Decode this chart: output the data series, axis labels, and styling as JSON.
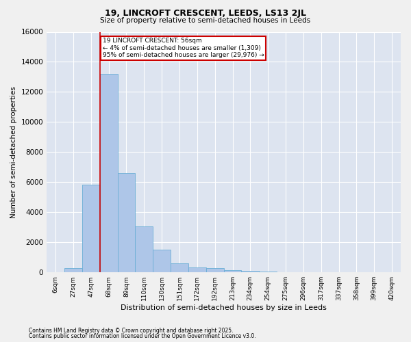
{
  "title1": "19, LINCROFT CRESCENT, LEEDS, LS13 2JL",
  "title2": "Size of property relative to semi-detached houses in Leeds",
  "xlabel": "Distribution of semi-detached houses by size in Leeds",
  "ylabel": "Number of semi-detached properties",
  "categories": [
    "6sqm",
    "27sqm",
    "47sqm",
    "68sqm",
    "89sqm",
    "110sqm",
    "130sqm",
    "151sqm",
    "172sqm",
    "192sqm",
    "213sqm",
    "234sqm",
    "254sqm",
    "275sqm",
    "296sqm",
    "317sqm",
    "337sqm",
    "358sqm",
    "399sqm",
    "420sqm"
  ],
  "values": [
    0,
    300,
    5850,
    13200,
    6600,
    3050,
    1500,
    600,
    350,
    270,
    150,
    80,
    60,
    0,
    0,
    0,
    0,
    0,
    0,
    0
  ],
  "bar_color": "#aec6e8",
  "bar_edge_color": "#6baed6",
  "vline_color": "#cc0000",
  "vline_x": 2.5,
  "annotation_text": "19 LINCROFT CRESCENT: 56sqm\n← 4% of semi-detached houses are smaller (1,309)\n95% of semi-detached houses are larger (29,976) →",
  "annotation_box_color": "#cc0000",
  "ylim": [
    0,
    16000
  ],
  "yticks": [
    0,
    2000,
    4000,
    6000,
    8000,
    10000,
    12000,
    14000,
    16000
  ],
  "bg_color": "#dde4f0",
  "fig_bg_color": "#f0f0f0",
  "footnote1": "Contains HM Land Registry data © Crown copyright and database right 2025.",
  "footnote2": "Contains public sector information licensed under the Open Government Licence v3.0."
}
